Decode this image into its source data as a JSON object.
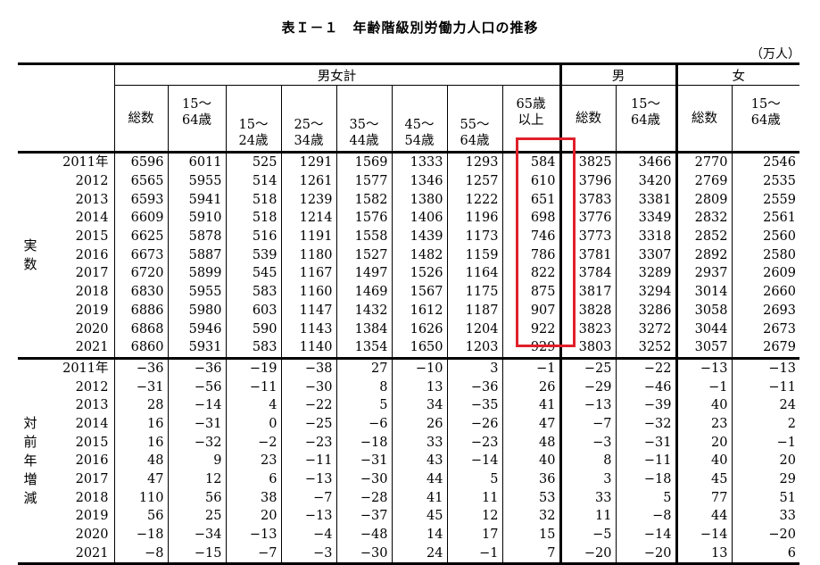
{
  "title": "表Ｉ－１　年齢階級別労働力人口の推移",
  "unit": "（万人）",
  "header": {
    "group_total": "男女計",
    "group_male": "男",
    "group_female": "女",
    "cols": {
      "total": "総数",
      "age15_64": [
        "15～",
        "64歳"
      ],
      "age15_24": [
        "15～",
        "24歳"
      ],
      "age25_34": [
        "25～",
        "34歳"
      ],
      "age35_44": [
        "35～",
        "44歳"
      ],
      "age45_54": [
        "45～",
        "54歳"
      ],
      "age55_64": [
        "55～",
        "64歳"
      ],
      "age65": [
        "65歳",
        "以上"
      ],
      "male_total": "総数",
      "male_15_64": [
        "15～",
        "64歳"
      ],
      "female_total": "総数",
      "female_15_64": [
        "15～",
        "64歳"
      ]
    }
  },
  "sections": [
    {
      "label": "実\n数",
      "rows": [
        {
          "year": "2011年",
          "values": [
            "6596",
            "6011",
            "525",
            "1291",
            "1569",
            "1333",
            "1293",
            "584",
            "3825",
            "3466",
            "2770",
            "2546"
          ]
        },
        {
          "year": "2012",
          "values": [
            "6565",
            "5955",
            "514",
            "1261",
            "1577",
            "1346",
            "1257",
            "610",
            "3796",
            "3420",
            "2769",
            "2535"
          ]
        },
        {
          "year": "2013",
          "values": [
            "6593",
            "5941",
            "518",
            "1239",
            "1582",
            "1380",
            "1222",
            "651",
            "3783",
            "3381",
            "2809",
            "2559"
          ]
        },
        {
          "year": "2014",
          "values": [
            "6609",
            "5910",
            "518",
            "1214",
            "1576",
            "1406",
            "1196",
            "698",
            "3776",
            "3349",
            "2832",
            "2561"
          ]
        },
        {
          "year": "2015",
          "values": [
            "6625",
            "5878",
            "516",
            "1191",
            "1558",
            "1439",
            "1173",
            "746",
            "3773",
            "3318",
            "2852",
            "2560"
          ]
        },
        {
          "year": "2016",
          "values": [
            "6673",
            "5887",
            "539",
            "1180",
            "1527",
            "1482",
            "1159",
            "786",
            "3781",
            "3307",
            "2892",
            "2580"
          ]
        },
        {
          "year": "2017",
          "values": [
            "6720",
            "5899",
            "545",
            "1167",
            "1497",
            "1526",
            "1164",
            "822",
            "3784",
            "3289",
            "2937",
            "2609"
          ]
        },
        {
          "year": "2018",
          "values": [
            "6830",
            "5955",
            "583",
            "1160",
            "1469",
            "1567",
            "1175",
            "875",
            "3817",
            "3294",
            "3014",
            "2660"
          ]
        },
        {
          "year": "2019",
          "values": [
            "6886",
            "5980",
            "603",
            "1147",
            "1432",
            "1612",
            "1187",
            "907",
            "3828",
            "3286",
            "3058",
            "2693"
          ]
        },
        {
          "year": "2020",
          "values": [
            "6868",
            "5946",
            "590",
            "1143",
            "1384",
            "1626",
            "1204",
            "922",
            "3823",
            "3272",
            "3044",
            "2673"
          ]
        },
        {
          "year": "2021",
          "values": [
            "6860",
            "5931",
            "583",
            "1140",
            "1354",
            "1650",
            "1203",
            "929",
            "3803",
            "3252",
            "3057",
            "2679"
          ]
        }
      ]
    },
    {
      "label": "対\n前\n年\n増\n減",
      "rows": [
        {
          "year": "2011年",
          "values": [
            "−36",
            "−36",
            "−19",
            "−38",
            "27",
            "−10",
            "3",
            "−1",
            "−25",
            "−22",
            "−13",
            "−13"
          ]
        },
        {
          "year": "2012",
          "values": [
            "−31",
            "−56",
            "−11",
            "−30",
            "8",
            "13",
            "−36",
            "26",
            "−29",
            "−46",
            "−1",
            "−11"
          ]
        },
        {
          "year": "2013",
          "values": [
            "28",
            "−14",
            "4",
            "−22",
            "5",
            "34",
            "−35",
            "41",
            "−13",
            "−39",
            "40",
            "24"
          ]
        },
        {
          "year": "2014",
          "values": [
            "16",
            "−31",
            "0",
            "−25",
            "−6",
            "26",
            "−26",
            "47",
            "−7",
            "−32",
            "23",
            "2"
          ]
        },
        {
          "year": "2015",
          "values": [
            "16",
            "−32",
            "−2",
            "−23",
            "−18",
            "33",
            "−23",
            "48",
            "−3",
            "−31",
            "20",
            "−1"
          ]
        },
        {
          "year": "2016",
          "values": [
            "48",
            "9",
            "23",
            "−11",
            "−31",
            "43",
            "−14",
            "40",
            "8",
            "−11",
            "40",
            "20"
          ]
        },
        {
          "year": "2017",
          "values": [
            "47",
            "12",
            "6",
            "−13",
            "−30",
            "44",
            "5",
            "36",
            "3",
            "−18",
            "45",
            "29"
          ]
        },
        {
          "year": "2018",
          "values": [
            "110",
            "56",
            "38",
            "−7",
            "−28",
            "41",
            "11",
            "53",
            "33",
            "5",
            "77",
            "51"
          ]
        },
        {
          "year": "2019",
          "values": [
            "56",
            "25",
            "20",
            "−13",
            "−37",
            "45",
            "12",
            "32",
            "11",
            "−8",
            "44",
            "33"
          ]
        },
        {
          "year": "2020",
          "values": [
            "−18",
            "−34",
            "−13",
            "−4",
            "−48",
            "14",
            "17",
            "15",
            "−5",
            "−14",
            "−14",
            "−20"
          ]
        },
        {
          "year": "2021",
          "values": [
            "−8",
            "−15",
            "−7",
            "−3",
            "−30",
            "24",
            "−1",
            "7",
            "−20",
            "−20",
            "13",
            "6"
          ]
        }
      ]
    }
  ],
  "highlight_color": "#e0202a"
}
